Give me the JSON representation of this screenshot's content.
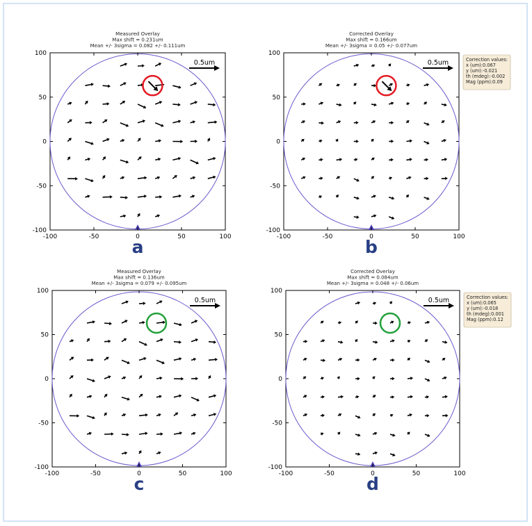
{
  "figure": {
    "colors": {
      "wafer_outline": "#6a5acd",
      "notch": "#4b3fb0",
      "vector": "#000000",
      "bad_marker": "#e31b23",
      "good_marker": "#23a03b",
      "letter": "#283f84",
      "box_fill": "#f6ecd8",
      "frame": "#d3e4f4"
    }
  },
  "chart_data": [
    {
      "type": "quiver",
      "panel_label": "a",
      "title_lines": [
        "Measured Overlay",
        "Max shift = 0.231um",
        "Mean +/- 3sigma = 0.082 +/- 0.111um"
      ],
      "scale_label": "0.5um",
      "xlim": [
        -100,
        100
      ],
      "ylim": [
        -100,
        100
      ],
      "xticks": [
        "-100",
        "-50",
        "0",
        "50",
        "100"
      ],
      "yticks": [
        "100",
        "50",
        "0",
        "-50",
        "-100"
      ],
      "highlight": {
        "x": 17,
        "y": 63,
        "type": "bad",
        "color": "#e31b23"
      },
      "vector_profile": 1.0,
      "correction_values": null
    },
    {
      "type": "quiver",
      "panel_label": "b",
      "title_lines": [
        "Corrected Overlay",
        "Max shift = 0.166um",
        "Mean +/- 3sigma = 0.05 +/- 0.077um"
      ],
      "scale_label": "0.5um",
      "xlim": [
        -100,
        100
      ],
      "ylim": [
        -100,
        100
      ],
      "xticks": [
        "-100",
        "-50",
        "0",
        "50",
        "100"
      ],
      "yticks": [
        "100",
        "50",
        "0",
        "-50",
        "-100"
      ],
      "highlight": {
        "x": 17,
        "y": 63,
        "type": "bad",
        "color": "#e31b23"
      },
      "vector_profile": 0.55,
      "correction_values": [
        "Correction values:",
        "x (um):0.067",
        "y (um):-0.021",
        "th (mdeg):-0.002",
        "Mag (ppm):0.09"
      ]
    },
    {
      "type": "quiver",
      "panel_label": "c",
      "title_lines": [
        "Measured Overlay",
        "Max shift = 0.136um",
        "Mean +/- 3sigma = 0.079 +/- 0.095um"
      ],
      "scale_label": "0.5um",
      "xlim": [
        -100,
        100
      ],
      "ylim": [
        -100,
        100
      ],
      "xticks": [
        "-100",
        "-50",
        "0",
        "50",
        "100"
      ],
      "yticks": [
        "100",
        "50",
        "0",
        "-50",
        "-100"
      ],
      "highlight": {
        "x": 20,
        "y": 63,
        "type": "good",
        "color": "#23a03b"
      },
      "vector_profile": 0.95,
      "correction_values": null
    },
    {
      "type": "quiver",
      "panel_label": "d",
      "title_lines": [
        "Corrected Overlay",
        "Max shift = 0.084um",
        "Mean +/- 3sigma = 0.048 +/- 0.06um"
      ],
      "scale_label": "0.5um",
      "xlim": [
        -100,
        100
      ],
      "ylim": [
        -100,
        100
      ],
      "xticks": [
        "-100",
        "-50",
        "0",
        "50",
        "100"
      ],
      "yticks": [
        "100",
        "50",
        "0",
        "-50",
        "-100"
      ],
      "highlight": {
        "x": 20,
        "y": 63,
        "type": "good",
        "color": "#23a03b"
      },
      "vector_profile": 0.5,
      "correction_values": [
        "Correction values:",
        "x (um):0.065",
        "y (um):-0.018",
        "th (mdeg):0.001",
        "Mag (ppm):0.12"
      ]
    }
  ]
}
